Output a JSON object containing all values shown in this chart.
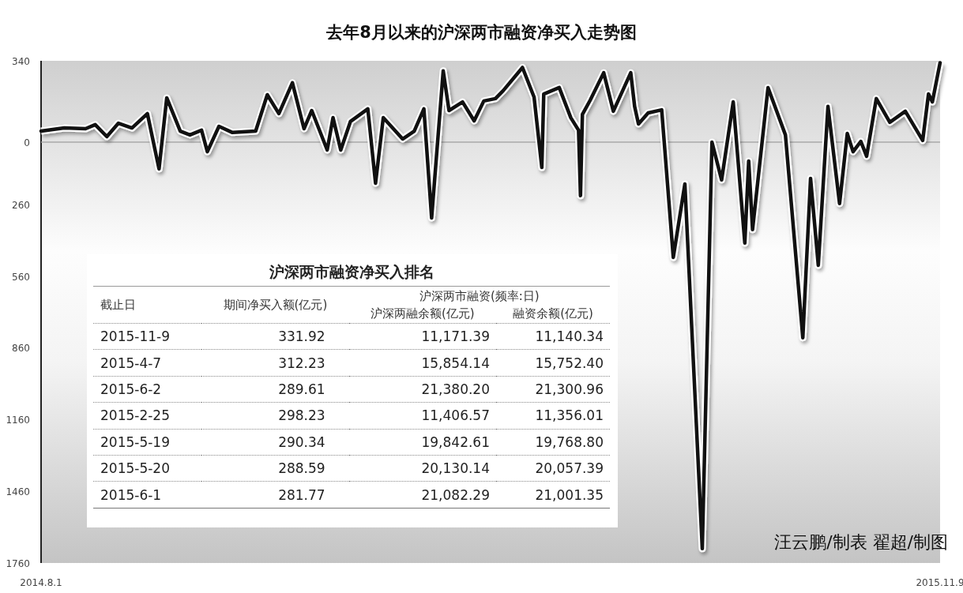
{
  "chart_data": {
    "type": "line",
    "title": "去年8月以来的沪深两市融资净买入走势图",
    "x": [
      "2014-08-01",
      "2014-08-13",
      "2014-08-24",
      "2014-08-29",
      "2014-09-04",
      "2014-09-10",
      "2014-09-17",
      "2014-09-25",
      "2014-10-01",
      "2014-10-05",
      "2014-10-12",
      "2014-10-17",
      "2014-10-23",
      "2014-10-26",
      "2014-11-01",
      "2014-11-08",
      "2014-11-20",
      "2014-11-26",
      "2014-12-02",
      "2014-12-09",
      "2014-12-15",
      "2014-12-19",
      "2014-12-27",
      "2014-12-30",
      "2015-01-03",
      "2015-01-08",
      "2015-01-17",
      "2015-01-21",
      "2015-01-25",
      "2015-02-04",
      "2015-02-10",
      "2015-02-15",
      "2015-02-19",
      "2015-02-25",
      "2015-02-28",
      "2015-03-07",
      "2015-03-13",
      "2015-03-18",
      "2015-03-24",
      "2015-03-28",
      "2015-04-07",
      "2015-04-13",
      "2015-04-17",
      "2015-04-18",
      "2015-04-26",
      "2015-05-02",
      "2015-05-06",
      "2015-05-07",
      "2015-05-08",
      "2015-05-12",
      "2015-05-19",
      "2015-05-24",
      "2015-06-02",
      "2015-06-04",
      "2015-06-06",
      "2015-06-11",
      "2015-06-18",
      "2015-06-24",
      "2015-06-30",
      "2015-07-09",
      "2015-07-14",
      "2015-07-19",
      "2015-07-25",
      "2015-07-31",
      "2015-08-02",
      "2015-08-04",
      "2015-08-12",
      "2015-08-21",
      "2015-08-30",
      "2015-09-03",
      "2015-09-07",
      "2015-09-12",
      "2015-09-18",
      "2015-09-22",
      "2015-09-25",
      "2015-09-29",
      "2015-10-02",
      "2015-10-07",
      "2015-10-14",
      "2015-10-22",
      "2015-10-31",
      "2015-11-03",
      "2015-11-05",
      "2015-11-09"
    ],
    "series": [
      {
        "color": "#111111",
        "values": [
          46,
          59,
          56,
          73,
          23,
          79,
          59,
          119,
          -112,
          185,
          46,
          30,
          50,
          -40,
          66,
          40,
          46,
          198,
          119,
          248,
          56,
          132,
          -33,
          102,
          -33,
          86,
          139,
          -172,
          102,
          13,
          46,
          139,
          -317,
          298,
          132,
          168,
          89,
          172,
          182,
          215,
          312,
          188,
          -106,
          201,
          228,
          102,
          50,
          -224,
          116,
          175,
          290,
          129,
          290,
          149,
          76,
          122,
          135,
          -482,
          -175,
          -1700,
          0,
          -158,
          168,
          -422,
          -79,
          -366,
          228,
          30,
          -818,
          -152,
          -515,
          149,
          -257,
          36,
          -40,
          3,
          -59,
          182,
          83,
          129,
          7,
          201,
          168,
          332
        ]
      }
    ],
    "xlim": [
      "2014-08-01",
      "2015-11-09"
    ],
    "xticks": [
      {
        "value": "2014-08-01",
        "label": "2014.8.1"
      },
      {
        "value": "2015-11-09",
        "label": "2015.11.9"
      }
    ],
    "ylim": [
      -1760,
      340
    ],
    "yticks": [
      340,
      0,
      {
        "value": -260,
        "label": "260"
      },
      {
        "value": -560,
        "label": "560"
      },
      {
        "value": -860,
        "label": "860"
      },
      {
        "value": -1160,
        "label": "1160"
      },
      {
        "value": -1460,
        "label": "1460"
      },
      {
        "value": -1760,
        "label": "1760"
      }
    ],
    "ref_lines": [
      {
        "axis": "y",
        "value": 0,
        "color": "#a8a8a8"
      }
    ],
    "annotations": [
      "沪深两市融资净买入排名",
      "沪深两市融资(频率:日)",
      "截止日",
      "期间净买入额(亿元)",
      "沪深两融余额(亿元)",
      "融资余额(亿元)",
      "2015-11-9",
      "331.92",
      "11,171.39",
      "11,140.34",
      "2015-4-7",
      "312.23",
      "15,854.14",
      "15,752.40",
      "2015-6-2",
      "289.61",
      "21,380.20",
      "21,300.96",
      "2015-2-25",
      "298.23",
      "11,406.57",
      "11,356.01",
      "2015-5-19",
      "290.34",
      "19,842.61",
      "19,768.80",
      "2015-5-20",
      "288.59",
      "20,130.14",
      "20,057.39",
      "2015-6-1",
      "281.77",
      "21,082.29",
      "21,001.35",
      "汪云鹏/制表  翟超/制图"
    ],
    "grid": false,
    "marker": "none",
    "line_style": "solid"
  }
}
